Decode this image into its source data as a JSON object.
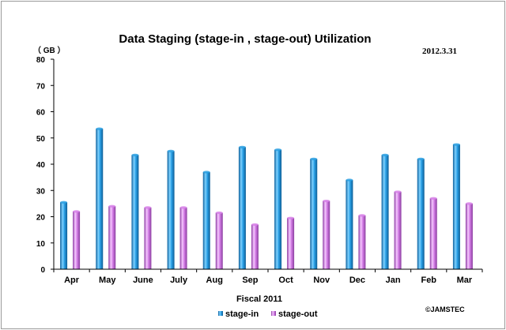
{
  "chart_data": {
    "type": "bar",
    "title": "Data Staging  (stage-in , stage-out) Utilization",
    "date_label": "2012.3.31",
    "unit_label": "（ GB ）",
    "xlabel": "Fiscal 2011",
    "ylabel": "",
    "ylim": [
      0,
      80
    ],
    "yticks": [
      0,
      10,
      20,
      30,
      40,
      50,
      60,
      70,
      80
    ],
    "grid": false,
    "legend_position": "bottom",
    "categories": [
      "Apr",
      "May",
      "June",
      "July",
      "Aug",
      "Sep",
      "Oct",
      "Nov",
      "Dec",
      "Jan",
      "Feb",
      "Mar"
    ],
    "series": [
      {
        "name": "stage-in",
        "color": "#2a9fe0",
        "values": [
          25.5,
          53.5,
          43.5,
          45,
          37,
          46.5,
          45.5,
          42,
          34,
          43.5,
          42,
          47.5
        ]
      },
      {
        "name": "stage-out",
        "color": "#d67fe6",
        "values": [
          22,
          24,
          23.5,
          23.5,
          21.5,
          17,
          19.5,
          26,
          20.5,
          29.5,
          27,
          25
        ]
      }
    ],
    "copyright": "©JAMSTEC"
  }
}
